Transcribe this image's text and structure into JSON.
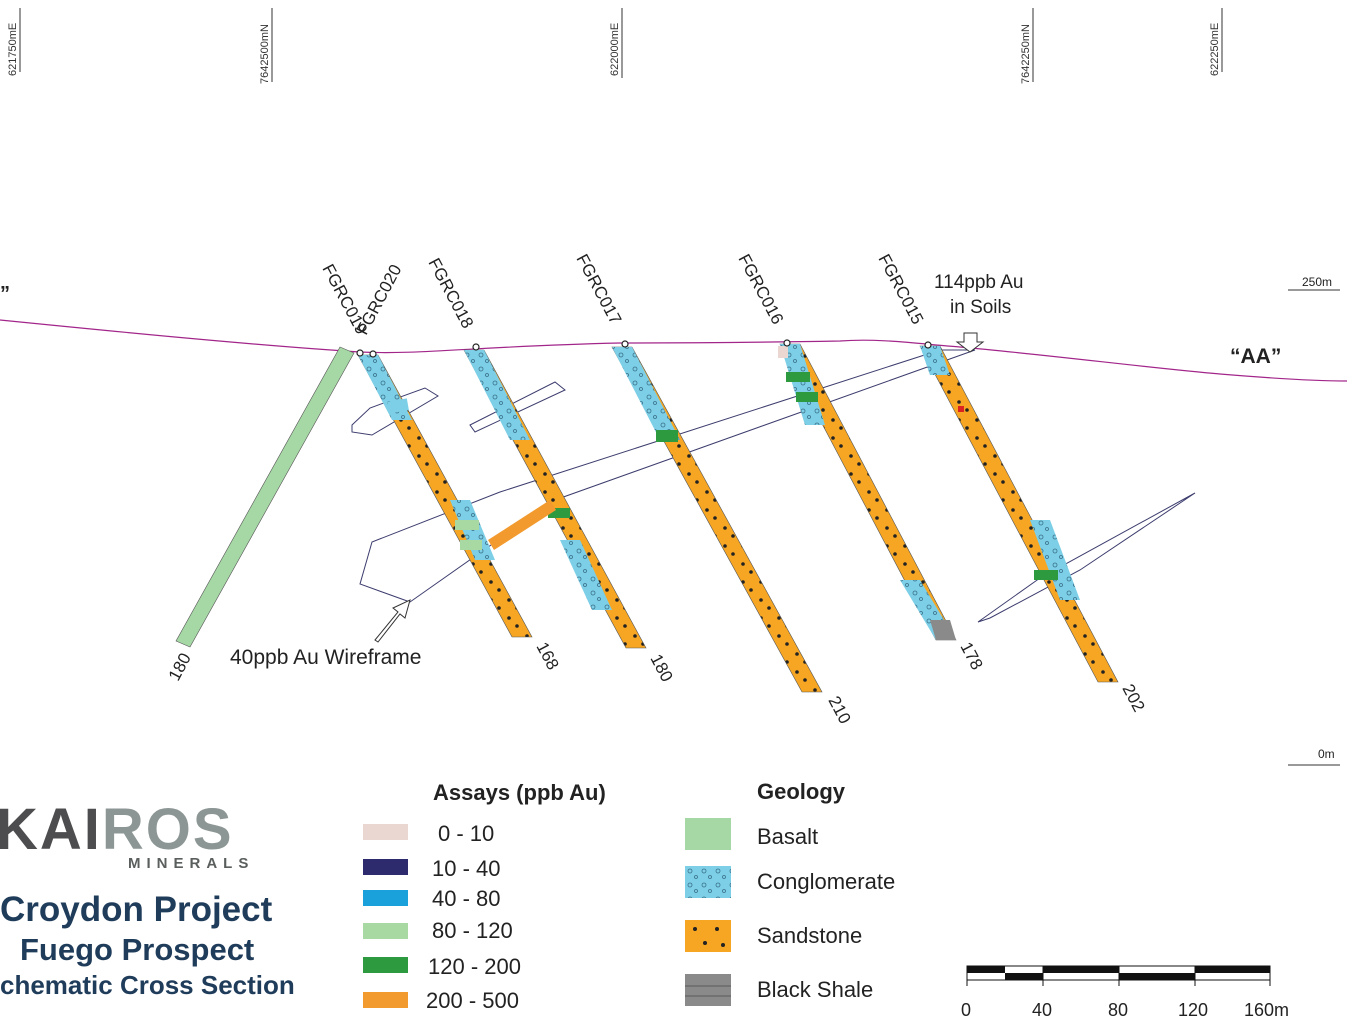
{
  "grid_labels": [
    "621750mE",
    "7642500mN",
    "622000mE",
    "7642250mN",
    "622250mE"
  ],
  "elevation_labels": {
    "top": "250m",
    "bottom": "0m"
  },
  "section_label": "“AA”",
  "partial_left_label": "”",
  "holes": [
    {
      "id": "FGRC019",
      "depth": "180"
    },
    {
      "id": "FGRC020",
      "depth": "168"
    },
    {
      "id": "FGRC018",
      "depth": "180"
    },
    {
      "id": "FGRC017",
      "depth": "210"
    },
    {
      "id": "FGRC016",
      "depth": "178"
    },
    {
      "id": "FGRC015",
      "depth": "202"
    }
  ],
  "annotations": {
    "soils_line1": "114ppb Au",
    "soils_line2": "in Soils",
    "wireframe": "40ppb Au Wireframe"
  },
  "logo": {
    "word_a": "KAI",
    "word_b": "ROS",
    "sub": "MINERALS"
  },
  "project": {
    "line1": "Croydon Project",
    "line2": "Fuego Prospect",
    "line3": "chematic Cross Section"
  },
  "assays": {
    "title": "Assays (ppb Au)",
    "ranges": [
      {
        "label": "0 -  10",
        "color": "#ead7d2"
      },
      {
        "label": "10 - 40",
        "color": "#2d2a6e"
      },
      {
        "label": "40 - 80",
        "color": "#1aa0db"
      },
      {
        "label": "80 - 120",
        "color": "#a8d9a2"
      },
      {
        "label": "120 - 200",
        "color": "#2e9a40"
      },
      {
        "label": "200 - 500",
        "color": "#f29a2e"
      }
    ]
  },
  "geology": {
    "title": "Geology",
    "units": [
      {
        "label": "Basalt",
        "color": "#a6d8a5"
      },
      {
        "label": "Conglomerate",
        "color": "#7ccfe6"
      },
      {
        "label": "Sandstone",
        "color": "#f6a623"
      },
      {
        "label": "Black Shale",
        "color": "#8a8a8a"
      }
    ]
  },
  "scale_bar": {
    "ticks": [
      "0",
      "40",
      "80",
      "120",
      "160m"
    ]
  }
}
